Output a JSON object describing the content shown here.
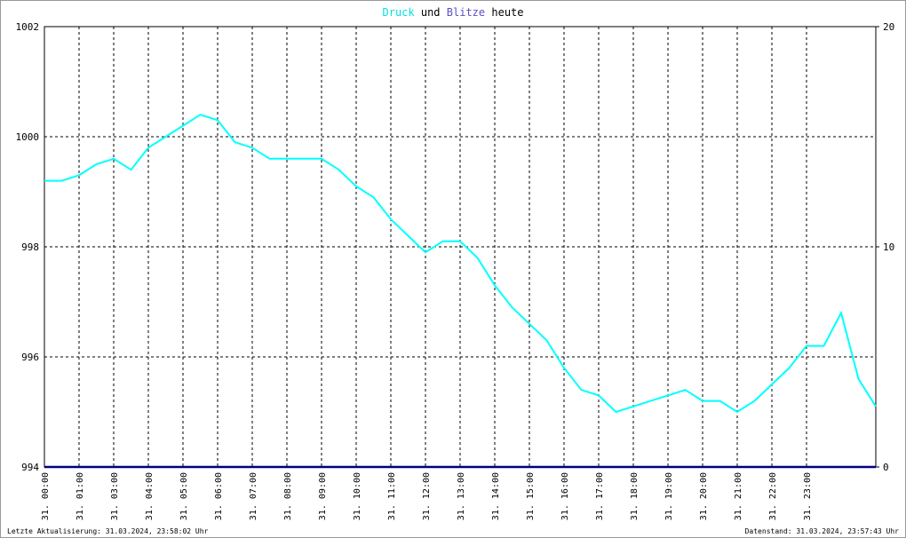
{
  "chart_data": {
    "type": "line",
    "title_connector": "und",
    "title_suffix": "heute",
    "x": [
      0,
      0.5,
      1,
      1.5,
      2,
      2.5,
      3,
      3.5,
      4,
      4.5,
      5,
      5.5,
      6,
      6.5,
      7,
      7.5,
      8,
      8.5,
      9,
      9.5,
      10,
      10.5,
      11,
      11.5,
      12,
      12.5,
      13,
      13.5,
      14,
      14.5,
      15,
      15.5,
      16,
      16.5,
      17,
      17.5,
      18,
      18.5,
      19,
      19.5,
      20,
      20.5,
      21,
      21.5,
      22,
      22.5,
      23,
      23.5,
      24
    ],
    "xlim": [
      0,
      24
    ],
    "xticks": [
      {
        "value": 0,
        "label": "31. 00:00"
      },
      {
        "value": 1,
        "label": "31. 01:00"
      },
      {
        "value": 2,
        "label": "31. 03:00"
      },
      {
        "value": 3,
        "label": "31. 04:00"
      },
      {
        "value": 4,
        "label": "31. 05:00"
      },
      {
        "value": 5,
        "label": "31. 06:00"
      },
      {
        "value": 6,
        "label": "31. 07:00"
      },
      {
        "value": 7,
        "label": "31. 08:00"
      },
      {
        "value": 8,
        "label": "31. 09:00"
      },
      {
        "value": 9,
        "label": "31. 10:00"
      },
      {
        "value": 10,
        "label": "31. 11:00"
      },
      {
        "value": 11,
        "label": "31. 12:00"
      },
      {
        "value": 12,
        "label": "31. 13:00"
      },
      {
        "value": 13,
        "label": "31. 14:00"
      },
      {
        "value": 14,
        "label": "31. 15:00"
      },
      {
        "value": 15,
        "label": "31. 16:00"
      },
      {
        "value": 16,
        "label": "31. 17:00"
      },
      {
        "value": 17,
        "label": "31. 18:00"
      },
      {
        "value": 18,
        "label": "31. 19:00"
      },
      {
        "value": 19,
        "label": "31. 20:00"
      },
      {
        "value": 20,
        "label": "31. 21:00"
      },
      {
        "value": 21,
        "label": "31. 22:00"
      },
      {
        "value": 22,
        "label": "31. 23:00"
      }
    ],
    "ylim": [
      994,
      1002
    ],
    "yticks": [
      994,
      996,
      998,
      1000,
      1002
    ],
    "y2lim": [
      0,
      20
    ],
    "y2ticks": [
      0,
      10,
      20
    ],
    "grid": true,
    "series": [
      {
        "name": "Druck",
        "color": "#00ffff",
        "values": [
          999.2,
          999.2,
          999.3,
          999.5,
          999.6,
          999.4,
          999.8,
          1000.0,
          1000.2,
          1000.4,
          1000.3,
          999.9,
          999.8,
          999.6,
          999.6,
          999.6,
          999.6,
          999.4,
          999.1,
          998.9,
          998.5,
          998.2,
          997.9,
          998.1,
          998.1,
          997.8,
          997.3,
          996.9,
          996.6,
          996.3,
          995.8,
          995.4,
          995.3,
          995.0,
          995.1,
          995.2,
          995.3,
          995.4,
          995.2,
          995.2,
          995.0,
          995.2,
          995.5,
          995.8,
          996.2,
          996.2,
          996.8,
          995.6,
          995.1
        ]
      },
      {
        "name": "Blitze",
        "color": "#000080",
        "axis": "y2",
        "values": [
          0,
          0,
          0,
          0,
          0,
          0,
          0,
          0,
          0,
          0,
          0,
          0,
          0,
          0,
          0,
          0,
          0,
          0,
          0,
          0,
          0,
          0,
          0,
          0,
          0,
          0,
          0,
          0,
          0,
          0,
          0,
          0,
          0,
          0,
          0,
          0,
          0,
          0,
          0,
          0,
          0,
          0,
          0,
          0,
          0,
          0,
          0,
          0,
          0
        ]
      }
    ]
  },
  "footer": {
    "left": "Letzte Aktualisierung: 31.03.2024, 23:58:02 Uhr",
    "right": "Datenstand: 31.03.2024, 23:57:43 Uhr"
  }
}
